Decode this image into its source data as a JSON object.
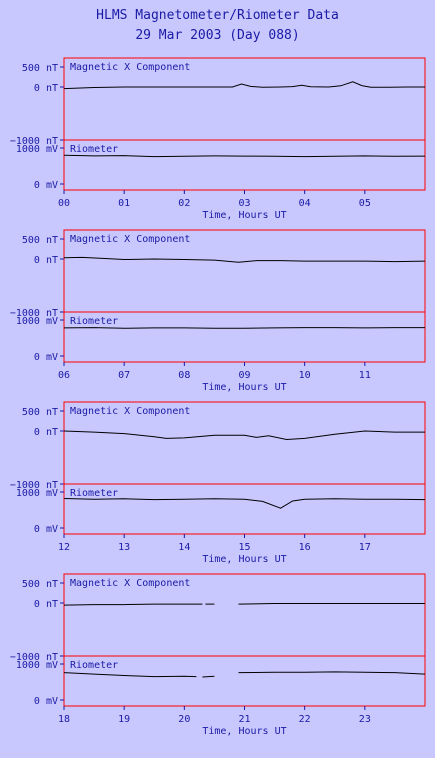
{
  "header": {
    "title": "HLMS Magnetometer/Riometer Data",
    "subtitle": "29 Mar 2003 (Day 088)"
  },
  "colors": {
    "background": "#c8c8ff",
    "frame": "#ff0000",
    "text": "#1a1aa6",
    "trace": "#000000"
  },
  "chart_data": [
    {
      "type": "line",
      "xlabel": "Time, Hours UT",
      "x_ticks": [
        "00",
        "01",
        "02",
        "03",
        "04",
        "05"
      ],
      "xlim": [
        0,
        6
      ],
      "panels": [
        {
          "label": "Magnetic X Component",
          "unit": "nT",
          "y_ticks": [
            "500 nT",
            "0 nT",
            "−1000 nT"
          ],
          "ylim": [
            -1000,
            500
          ],
          "series": [
            {
              "x": [
                0,
                0.5,
                1,
                1.5,
                2,
                2.5,
                2.8,
                2.95,
                3.1,
                3.3,
                3.6,
                3.8,
                3.95,
                4.1,
                4.4,
                4.6,
                4.8,
                4.95,
                5.1,
                5.4,
                5.7,
                6
              ],
              "y": [
                -30,
                -10,
                0,
                0,
                0,
                0,
                0,
                75,
                15,
                -5,
                0,
                10,
                45,
                5,
                0,
                30,
                130,
                35,
                -5,
                -5,
                0,
                0
              ]
            }
          ]
        },
        {
          "label": "Riometer",
          "unit": "mV",
          "y_ticks": [
            "1000 mV",
            "0 mV"
          ],
          "ylim": [
            0,
            1200
          ],
          "series": [
            {
              "x": [
                0,
                0.5,
                1,
                1.5,
                2,
                2.5,
                3,
                3.5,
                4,
                4.5,
                5,
                5.5,
                6
              ],
              "y": [
                800,
                780,
                790,
                760,
                770,
                780,
                775,
                770,
                760,
                770,
                780,
                770,
                775
              ]
            }
          ]
        }
      ]
    },
    {
      "type": "line",
      "xlabel": "Time, Hours UT",
      "x_ticks": [
        "06",
        "07",
        "08",
        "09",
        "10",
        "11"
      ],
      "xlim": [
        6,
        12
      ],
      "panels": [
        {
          "label": "Magnetic X Component",
          "unit": "nT",
          "y_ticks": [
            "500 nT",
            "0 nT",
            "−1000 nT"
          ],
          "ylim": [
            -1000,
            500
          ],
          "series": [
            {
              "x": [
                6,
                6.3,
                6.6,
                7,
                7.5,
                8,
                8.5,
                8.9,
                9.2,
                9.6,
                10,
                10.5,
                11,
                11.5,
                12
              ],
              "y": [
                30,
                40,
                20,
                -10,
                0,
                -10,
                -20,
                -60,
                -30,
                -30,
                -40,
                -40,
                -40,
                -50,
                -40
              ]
            }
          ]
        },
        {
          "label": "Riometer",
          "unit": "mV",
          "y_ticks": [
            "1000 mV",
            "0 mV"
          ],
          "ylim": [
            0,
            1200
          ],
          "series": [
            {
              "x": [
                6,
                6.5,
                7,
                7.5,
                8,
                8.5,
                9,
                9.5,
                10,
                10.5,
                11,
                11.5,
                12
              ],
              "y": [
                780,
                790,
                770,
                780,
                780,
                770,
                770,
                780,
                790,
                790,
                780,
                790,
                790
              ]
            }
          ]
        }
      ]
    },
    {
      "type": "line",
      "xlabel": "Time, Hours UT",
      "x_ticks": [
        "12",
        "13",
        "14",
        "15",
        "16",
        "17"
      ],
      "xlim": [
        12,
        18
      ],
      "panels": [
        {
          "label": "Magnetic X Component",
          "unit": "nT",
          "y_ticks": [
            "500 nT",
            "0 nT",
            "−1000 nT"
          ],
          "ylim": [
            -1000,
            500
          ],
          "series": [
            {
              "x": [
                12,
                12.5,
                13,
                13.5,
                13.7,
                14,
                14.5,
                15,
                15.2,
                15.4,
                15.7,
                16,
                16.5,
                17,
                17.5,
                18
              ],
              "y": [
                0,
                -20,
                -50,
                -110,
                -140,
                -130,
                -80,
                -80,
                -120,
                -90,
                -160,
                -140,
                -60,
                0,
                -20,
                -20
              ]
            }
          ]
        },
        {
          "label": "Riometer",
          "unit": "mV",
          "y_ticks": [
            "1000 mV",
            "0 mV"
          ],
          "ylim": [
            0,
            1200
          ],
          "series": [
            {
              "x": [
                12,
                12.5,
                13,
                13.5,
                14,
                14.5,
                15,
                15.3,
                15.6,
                15.8,
                16,
                16.5,
                17,
                17.5,
                18
              ],
              "y": [
                820,
                800,
                810,
                790,
                800,
                810,
                800,
                740,
                550,
                750,
                800,
                810,
                800,
                800,
                790
              ]
            }
          ]
        }
      ]
    },
    {
      "type": "line",
      "xlabel": "Time, Hours UT",
      "x_ticks": [
        "18",
        "19",
        "20",
        "21",
        "22",
        "23"
      ],
      "xlim": [
        18,
        24
      ],
      "panels": [
        {
          "label": "Magnetic X Component",
          "unit": "nT",
          "y_ticks": [
            "500 nT",
            "0 nT",
            "−1000 nT"
          ],
          "ylim": [
            -1000,
            500
          ],
          "series": [
            {
              "x": [
                18,
                18.5,
                19,
                19.5,
                20,
                20.3
              ],
              "y": [
                -40,
                -30,
                -30,
                -20,
                -20,
                -20
              ]
            },
            {
              "x": [
                20.35,
                20.5
              ],
              "y": [
                -20,
                -20
              ]
            },
            {
              "x": [
                20.9,
                21.5,
                22,
                22.5,
                23,
                23.5,
                24
              ],
              "y": [
                -20,
                -10,
                -10,
                -10,
                -10,
                -10,
                -10
              ]
            }
          ]
        },
        {
          "label": "Riometer",
          "unit": "mV",
          "y_ticks": [
            "1000 mV",
            "0 mV"
          ],
          "ylim": [
            0,
            1200
          ],
          "series": [
            {
              "x": [
                18,
                18.5,
                19,
                19.5,
                20,
                20.2
              ],
              "y": [
                760,
                720,
                680,
                650,
                660,
                650
              ]
            },
            {
              "x": [
                20.3,
                20.5
              ],
              "y": [
                640,
                660
              ]
            },
            {
              "x": [
                20.9,
                21.5,
                22,
                22.5,
                23,
                23.5,
                24
              ],
              "y": [
                760,
                770,
                770,
                780,
                770,
                760,
                720
              ]
            }
          ]
        }
      ]
    }
  ]
}
